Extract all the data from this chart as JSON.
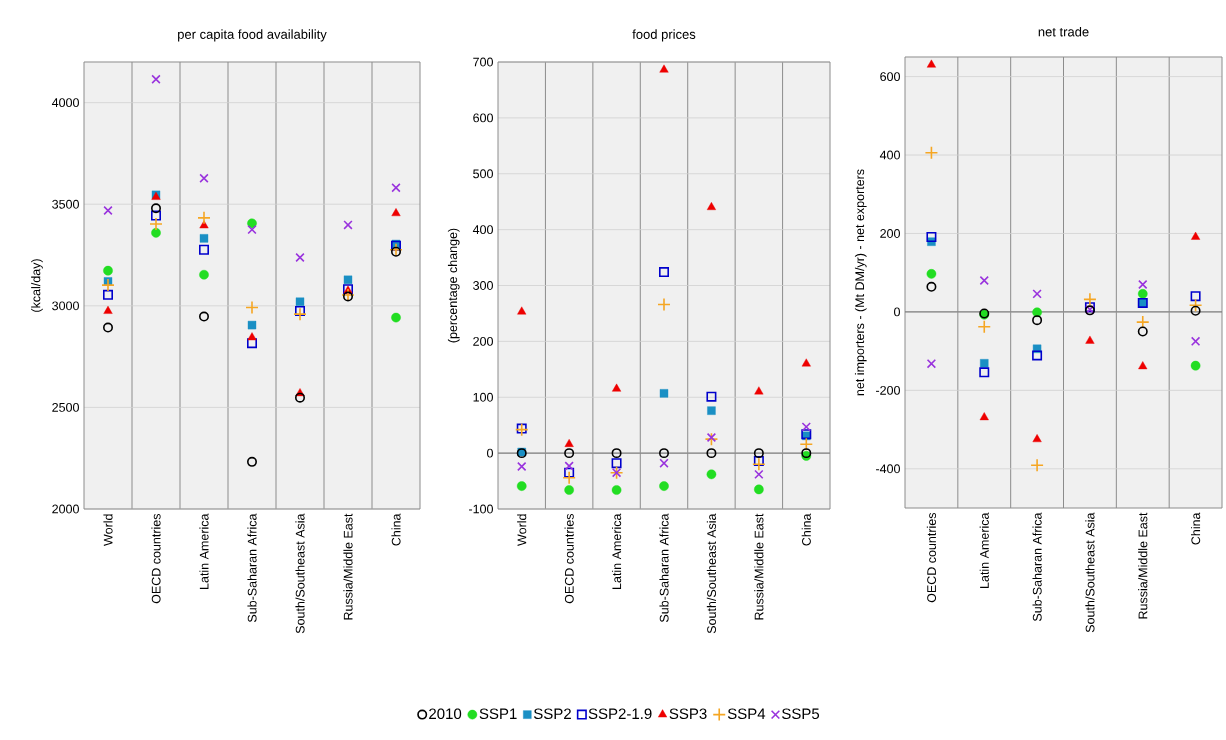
{
  "chart_data": [
    {
      "type": "scatter",
      "title": "per capita food availability",
      "ylabel": "(kcal/day)",
      "categories": [
        "World",
        "OECD countries",
        "Latin America",
        "Sub-Saharan Africa",
        "South/Southeast Asia",
        "Russia/Middle East",
        "China"
      ],
      "ylim": [
        2000,
        4200
      ],
      "yticks": [
        2000,
        2500,
        3000,
        3500,
        4000
      ],
      "grid": "y",
      "series": [
        {
          "color": "#000000",
          "marker": "circle-open",
          "values": [
            2893,
            3480,
            2947,
            2232,
            2548,
            3046,
            3266
          ]
        },
        {
          "color": "#22dd22",
          "marker": "circle",
          "values": [
            3173,
            3359,
            3153,
            3406,
            null,
            null,
            2942
          ]
        },
        {
          "color": "#1a8fc4",
          "marker": "square",
          "values": [
            3120,
            3546,
            3332,
            2905,
            3020,
            3128,
            3304
          ]
        },
        {
          "color": "#0000cc",
          "marker": "square-open",
          "values": [
            3054,
            3444,
            3276,
            2816,
            2975,
            3082,
            3296
          ]
        },
        {
          "color": "#ee0000",
          "marker": "triangle",
          "values": [
            2974,
            3535,
            3395,
            2844,
            2569,
            3074,
            3455
          ]
        },
        {
          "color": "#f5a623",
          "marker": "plus",
          "values": [
            3102,
            3403,
            3433,
            2992,
            2959,
            3053,
            3276
          ]
        },
        {
          "color": "#9933dd",
          "marker": "cross",
          "values": [
            3469,
            4115,
            3628,
            3375,
            3238,
            3398,
            3581
          ]
        }
      ]
    },
    {
      "type": "scatter",
      "title": "food prices",
      "ylabel": "(percentage change)",
      "categories": [
        "World",
        "OECD countries",
        "Latin America",
        "Sub-Saharan Africa",
        "South/Southeast Asia",
        "Russia/Middle East",
        "China"
      ],
      "ylim": [
        -100,
        700
      ],
      "yticks": [
        -100,
        0,
        100,
        200,
        300,
        400,
        500,
        600,
        700
      ],
      "grid": "y",
      "legend": "bottom",
      "ref_lines": [
        {
          "axis": "y",
          "value": 0,
          "color": "#808080"
        }
      ],
      "series": [
        {
          "name": "2010",
          "color": "#000000",
          "marker": "circle-open",
          "values": [
            0,
            0,
            0,
            0,
            0,
            0,
            0
          ]
        },
        {
          "name": "SSP1",
          "color": "#22dd22",
          "marker": "circle",
          "values": [
            -59,
            -66,
            -66,
            -59,
            -38,
            -65,
            -5
          ]
        },
        {
          "name": "SSP2",
          "color": "#1a8fc4",
          "marker": "square",
          "values": [
            2,
            null,
            null,
            107,
            76,
            null,
            31
          ]
        },
        {
          "name": "SSP2-1.9",
          "color": "#0000cc",
          "marker": "square-open",
          "values": [
            44,
            -35,
            -18,
            324,
            101,
            -14,
            34
          ]
        },
        {
          "name": "SSP3",
          "color": "#ee0000",
          "marker": "triangle",
          "values": [
            253,
            16,
            115,
            686,
            440,
            110,
            160
          ]
        },
        {
          "name": "SSP4",
          "color": "#f5a623",
          "marker": "plus",
          "values": [
            42,
            -44,
            -35,
            266,
            25,
            -20,
            16
          ]
        },
        {
          "name": "SSP5",
          "color": "#9933dd",
          "marker": "cross",
          "values": [
            -24,
            -23,
            -35,
            -18,
            28,
            -38,
            47
          ]
        }
      ]
    },
    {
      "type": "scatter",
      "title": "net trade",
      "ylabel": "net importers - (Mt DM/yr) - net exporters",
      "categories": [
        "OECD countries",
        "Latin America",
        "Sub-Saharan Africa",
        "South/Southeast Asia",
        "Russia/Middle East",
        "China"
      ],
      "ylim": [
        -500,
        650
      ],
      "yticks": [
        -400,
        -200,
        0,
        200,
        400,
        600
      ],
      "grid": "y",
      "ref_lines": [
        {
          "axis": "y",
          "value": 0,
          "color": "#808080"
        }
      ],
      "series": [
        {
          "color": "#000000",
          "marker": "circle-open",
          "values": [
            64,
            -4,
            -21,
            4,
            -50,
            3
          ]
        },
        {
          "color": "#22dd22",
          "marker": "circle",
          "values": [
            97,
            -7,
            -1,
            null,
            46,
            -137
          ]
        },
        {
          "color": "#1a8fc4",
          "marker": "square",
          "values": [
            179,
            -131,
            -94,
            null,
            23,
            null
          ]
        },
        {
          "color": "#0000cc",
          "marker": "square-open",
          "values": [
            191,
            -154,
            -111,
            12,
            23,
            40
          ]
        },
        {
          "color": "#ee0000",
          "marker": "triangle",
          "values": [
            630,
            -269,
            -325,
            -74,
            -139,
            191
          ]
        },
        {
          "color": "#f5a623",
          "marker": "plus",
          "values": [
            406,
            -38,
            -391,
            32,
            -26,
            17
          ]
        },
        {
          "color": "#9933dd",
          "marker": "cross",
          "values": [
            -132,
            80,
            46,
            6,
            70,
            -75
          ]
        }
      ]
    }
  ]
}
